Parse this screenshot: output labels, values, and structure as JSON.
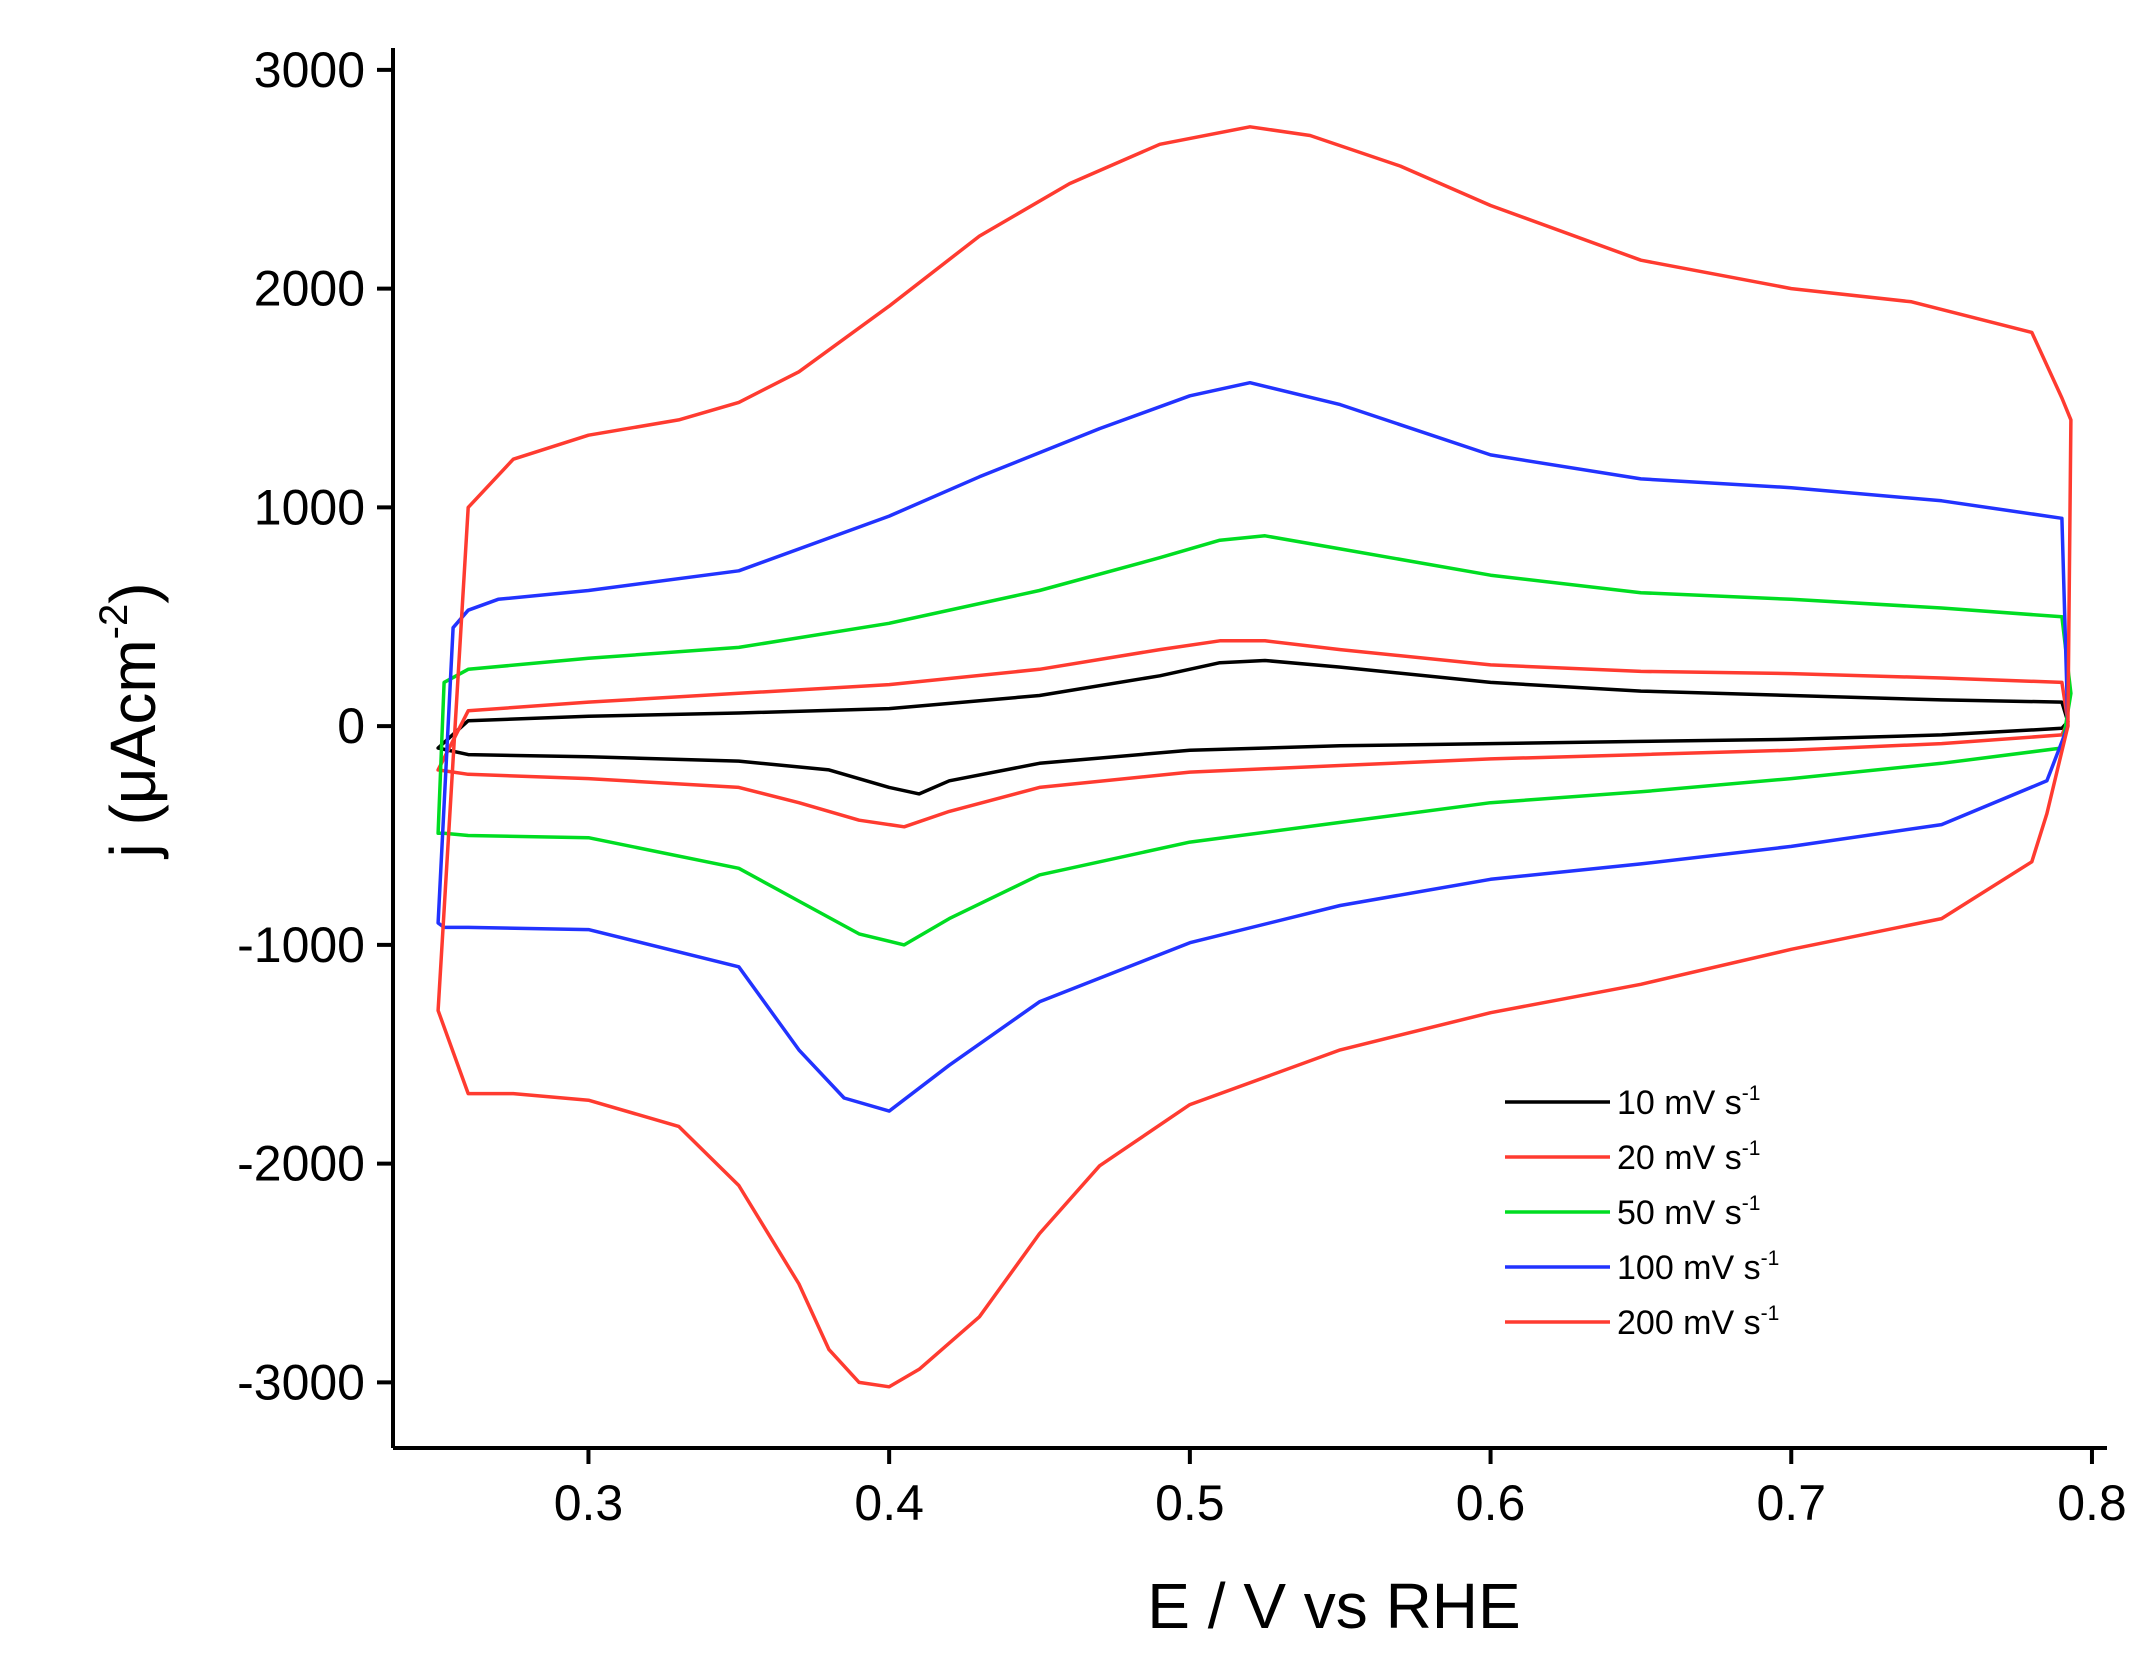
{
  "chart_data": {
    "type": "line",
    "title": "",
    "xlabel": "E / V vs RHE",
    "ylabel": {
      "main": "j (μAcm",
      "sup": "-2",
      "close": ")"
    },
    "xlim": [
      0.235,
      0.805
    ],
    "ylim": [
      -3300,
      3100
    ],
    "xticks": [
      0.3,
      0.4,
      0.5,
      0.6,
      0.7,
      0.8
    ],
    "xtick_labels": [
      "0.3",
      "0.4",
      "0.5",
      "0.6",
      "0.7",
      "0.8"
    ],
    "yticks": [
      3000,
      2000,
      1000,
      0,
      -1000,
      -2000,
      -3000
    ],
    "ytick_labels": [
      "3000",
      "2000",
      "1000",
      "0",
      "-1000",
      "-2000",
      "-3000"
    ],
    "legend_position": "bottom-right",
    "series": [
      {
        "name": "10 mV s",
        "unit_sup": "-1",
        "color": "#000000",
        "x": [
          0.25,
          0.26,
          0.3,
          0.35,
          0.4,
          0.45,
          0.49,
          0.51,
          0.525,
          0.55,
          0.6,
          0.65,
          0.7,
          0.75,
          0.79,
          0.792,
          0.79,
          0.75,
          0.7,
          0.65,
          0.6,
          0.55,
          0.5,
          0.45,
          0.42,
          0.41,
          0.4,
          0.38,
          0.35,
          0.3,
          0.26,
          0.25
        ],
        "y": [
          -100,
          25,
          45,
          60,
          80,
          140,
          230,
          290,
          300,
          270,
          200,
          160,
          140,
          120,
          110,
          20,
          -10,
          -40,
          -60,
          -70,
          -80,
          -90,
          -110,
          -170,
          -250,
          -310,
          -280,
          -200,
          -160,
          -140,
          -130,
          -100
        ]
      },
      {
        "name": "20 mV s",
        "unit_sup": "-1",
        "color": "#ff3b30",
        "x": [
          0.25,
          0.26,
          0.3,
          0.35,
          0.4,
          0.45,
          0.49,
          0.51,
          0.525,
          0.55,
          0.6,
          0.65,
          0.7,
          0.75,
          0.79,
          0.792,
          0.79,
          0.75,
          0.7,
          0.65,
          0.6,
          0.55,
          0.5,
          0.45,
          0.42,
          0.405,
          0.39,
          0.37,
          0.35,
          0.3,
          0.26,
          0.25
        ],
        "y": [
          -200,
          70,
          110,
          150,
          190,
          260,
          350,
          390,
          390,
          350,
          280,
          250,
          240,
          220,
          200,
          20,
          -40,
          -80,
          -110,
          -130,
          -150,
          -180,
          -210,
          -280,
          -390,
          -460,
          -430,
          -350,
          -280,
          -240,
          -220,
          -200
        ]
      },
      {
        "name": "50 mV s",
        "unit_sup": "-1",
        "color": "#00dd22",
        "x": [
          0.25,
          0.252,
          0.26,
          0.3,
          0.35,
          0.4,
          0.45,
          0.49,
          0.51,
          0.525,
          0.55,
          0.6,
          0.65,
          0.7,
          0.75,
          0.79,
          0.793,
          0.79,
          0.75,
          0.7,
          0.65,
          0.6,
          0.55,
          0.5,
          0.45,
          0.42,
          0.405,
          0.39,
          0.37,
          0.35,
          0.3,
          0.26,
          0.252,
          0.25
        ],
        "y": [
          -490,
          200,
          260,
          310,
          360,
          470,
          620,
          770,
          850,
          870,
          810,
          690,
          610,
          580,
          540,
          500,
          150,
          -100,
          -170,
          -240,
          -300,
          -350,
          -440,
          -530,
          -680,
          -880,
          -1000,
          -950,
          -800,
          -650,
          -510,
          -500,
          -490,
          -490
        ]
      },
      {
        "name": "100 mV s",
        "unit_sup": "-1",
        "color": "#2233ff",
        "x": [
          0.25,
          0.255,
          0.26,
          0.27,
          0.3,
          0.35,
          0.4,
          0.43,
          0.47,
          0.5,
          0.52,
          0.55,
          0.6,
          0.65,
          0.7,
          0.75,
          0.79,
          0.792,
          0.785,
          0.75,
          0.7,
          0.65,
          0.6,
          0.55,
          0.5,
          0.45,
          0.42,
          0.4,
          0.385,
          0.37,
          0.35,
          0.3,
          0.26,
          0.252,
          0.25
        ],
        "y": [
          -900,
          450,
          530,
          580,
          620,
          710,
          960,
          1140,
          1360,
          1510,
          1570,
          1470,
          1240,
          1130,
          1090,
          1030,
          950,
          0,
          -250,
          -450,
          -550,
          -630,
          -700,
          -820,
          -990,
          -1260,
          -1550,
          -1760,
          -1700,
          -1480,
          -1100,
          -930,
          -920,
          -920,
          -900
        ]
      },
      {
        "name": "200 mV s",
        "unit_sup": "-1",
        "color": "#ff3b30",
        "x": [
          0.25,
          0.26,
          0.275,
          0.3,
          0.33,
          0.35,
          0.37,
          0.4,
          0.43,
          0.46,
          0.49,
          0.52,
          0.54,
          0.57,
          0.6,
          0.65,
          0.7,
          0.74,
          0.78,
          0.79,
          0.793,
          0.792,
          0.785,
          0.78,
          0.75,
          0.7,
          0.65,
          0.6,
          0.55,
          0.5,
          0.47,
          0.45,
          0.43,
          0.41,
          0.4,
          0.39,
          0.38,
          0.37,
          0.35,
          0.33,
          0.3,
          0.275,
          0.26,
          0.25
        ],
        "y": [
          -1300,
          1000,
          1220,
          1330,
          1400,
          1480,
          1620,
          1920,
          2240,
          2480,
          2660,
          2740,
          2700,
          2560,
          2380,
          2130,
          2000,
          1940,
          1800,
          1500,
          1400,
          0,
          -400,
          -620,
          -880,
          -1020,
          -1180,
          -1310,
          -1480,
          -1730,
          -2010,
          -2320,
          -2700,
          -2940,
          -3020,
          -3000,
          -2850,
          -2550,
          -2100,
          -1830,
          -1710,
          -1680,
          -1680,
          -1300
        ]
      }
    ]
  }
}
